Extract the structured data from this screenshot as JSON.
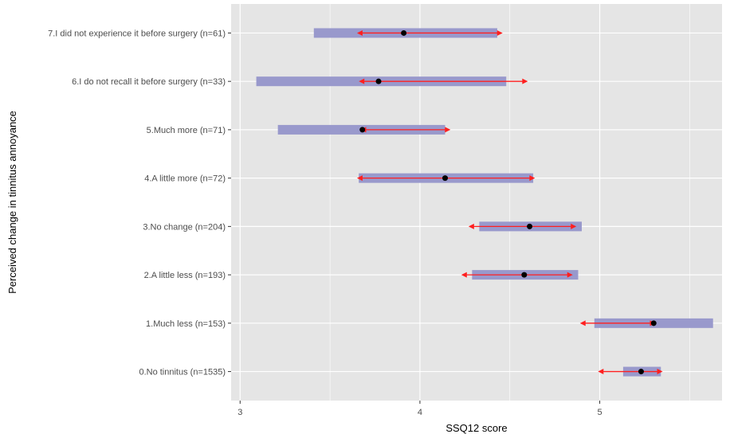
{
  "chart_data": {
    "type": "errorbar-interval",
    "title": "",
    "xlabel": "SSQ12 score",
    "ylabel": "Perceived change in tinnitus annoyance",
    "xlim": [
      2.95,
      5.68
    ],
    "xticks": [
      3,
      4,
      5
    ],
    "grid": true,
    "legend": "none",
    "colors": {
      "panel": "#e5e5e5",
      "grid": "#ffffff",
      "band": "#9999cc",
      "arrow": "#ff2020",
      "point": "#000000"
    },
    "categories": [
      "7.I did not experience it before surgery (n=61)",
      "6.I do not recall it before surgery (n=33)",
      "5.Much more (n=71)",
      "4.A little more (n=72)",
      "3.No change (n=204)",
      "2.A little less (n=193)",
      "1.Much less (n=153)",
      "0.No tinnitus (n=1535)"
    ],
    "points": [
      3.91,
      3.77,
      3.68,
      4.14,
      4.61,
      4.58,
      5.3,
      5.23
    ],
    "bands": [
      [
        3.41,
        4.43
      ],
      [
        3.09,
        4.48
      ],
      [
        3.21,
        4.14
      ],
      [
        3.66,
        4.63
      ],
      [
        4.33,
        4.9
      ],
      [
        4.29,
        4.88
      ],
      [
        4.97,
        5.63
      ],
      [
        5.13,
        5.34
      ]
    ],
    "arrows": [
      [
        3.65,
        4.46
      ],
      [
        3.66,
        4.6
      ],
      [
        3.67,
        4.17
      ],
      [
        3.65,
        4.64
      ],
      [
        4.27,
        4.87
      ],
      [
        4.23,
        4.85
      ],
      [
        4.89,
        5.31
      ],
      [
        4.99,
        5.35
      ]
    ]
  }
}
